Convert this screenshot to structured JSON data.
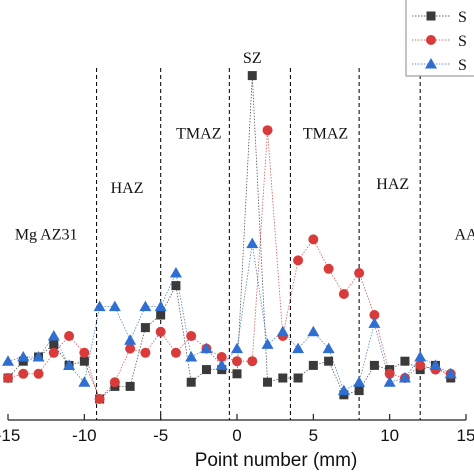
{
  "chart_data": {
    "type": "line",
    "xlabel": "Point number (mm)",
    "ylabel": "",
    "xlim": [
      -15,
      15
    ],
    "ylim": [
      0,
      100
    ],
    "x_ticks": [
      -15,
      -10,
      -5,
      0,
      5,
      10,
      15
    ],
    "x_tick_labels": [
      "-15",
      "-10",
      "-5",
      "0",
      "5",
      "10",
      "15"
    ],
    "boundaries": [
      -9.2,
      -5,
      -0.5,
      3.5,
      8,
      12
    ],
    "zones": [
      {
        "label": "Mg AZ31",
        "x": -12.5,
        "y": 43
      },
      {
        "label": "HAZ",
        "x": -7.2,
        "y": 54
      },
      {
        "label": "TMAZ",
        "x": -2.5,
        "y": 67
      },
      {
        "label": "SZ",
        "x": 1.0,
        "y": 85
      },
      {
        "label": "TMAZ",
        "x": 5.8,
        "y": 67
      },
      {
        "label": "HAZ",
        "x": 10.2,
        "y": 55
      },
      {
        "label": "AA",
        "x": 15.0,
        "y": 43
      }
    ],
    "legend": {
      "position": "top-right",
      "entries": [
        "S",
        "S",
        "S"
      ]
    },
    "series": [
      {
        "color": "#3a3a3a",
        "marker": "square",
        "x": [
          -15,
          -14,
          -13,
          -12,
          -11,
          -10,
          -9,
          -8,
          -7,
          -6,
          -5,
          -4,
          -3,
          -2,
          -1,
          0,
          1,
          2,
          3,
          4,
          5,
          6,
          7,
          8,
          9,
          10,
          11,
          12,
          13,
          14
        ],
        "y": [
          10,
          14,
          15,
          18,
          13,
          14,
          5,
          8,
          8,
          22,
          25,
          32,
          9,
          12,
          12,
          11,
          82,
          9,
          10,
          10,
          13,
          14,
          6,
          7,
          13,
          12,
          14,
          12,
          13,
          10
        ]
      },
      {
        "color": "#d93a3a",
        "marker": "circle",
        "x": [
          -15,
          -14,
          -13,
          -12,
          -11,
          -10,
          -9,
          -8,
          -7,
          -6,
          -5,
          -4,
          -3,
          -2,
          -1,
          0,
          1,
          2,
          3,
          4,
          5,
          6,
          7,
          8,
          9,
          10,
          11,
          12,
          13,
          14
        ],
        "y": [
          10,
          11,
          11,
          16,
          20,
          16,
          5,
          9,
          17,
          16,
          21,
          16,
          20,
          17,
          15,
          14,
          14,
          69,
          20,
          38,
          43,
          36,
          30,
          35,
          25,
          11,
          10,
          13,
          12,
          11
        ]
      },
      {
        "color": "#2f6fd1",
        "marker": "triangle",
        "x": [
          -15,
          -14,
          -13,
          -12,
          -11,
          -10,
          -9,
          -8,
          -7,
          -6,
          -5,
          -4,
          -3,
          -2,
          -1,
          0,
          1,
          2,
          3,
          4,
          5,
          6,
          7,
          8,
          9,
          10,
          11,
          12,
          13,
          14
        ],
        "y": [
          14,
          15,
          15,
          20,
          13,
          9,
          27,
          27,
          19,
          27,
          27,
          35,
          15,
          17,
          13,
          17,
          42,
          18,
          21,
          17,
          21,
          17,
          7,
          9,
          23,
          9,
          10,
          15,
          13,
          11
        ]
      }
    ]
  }
}
